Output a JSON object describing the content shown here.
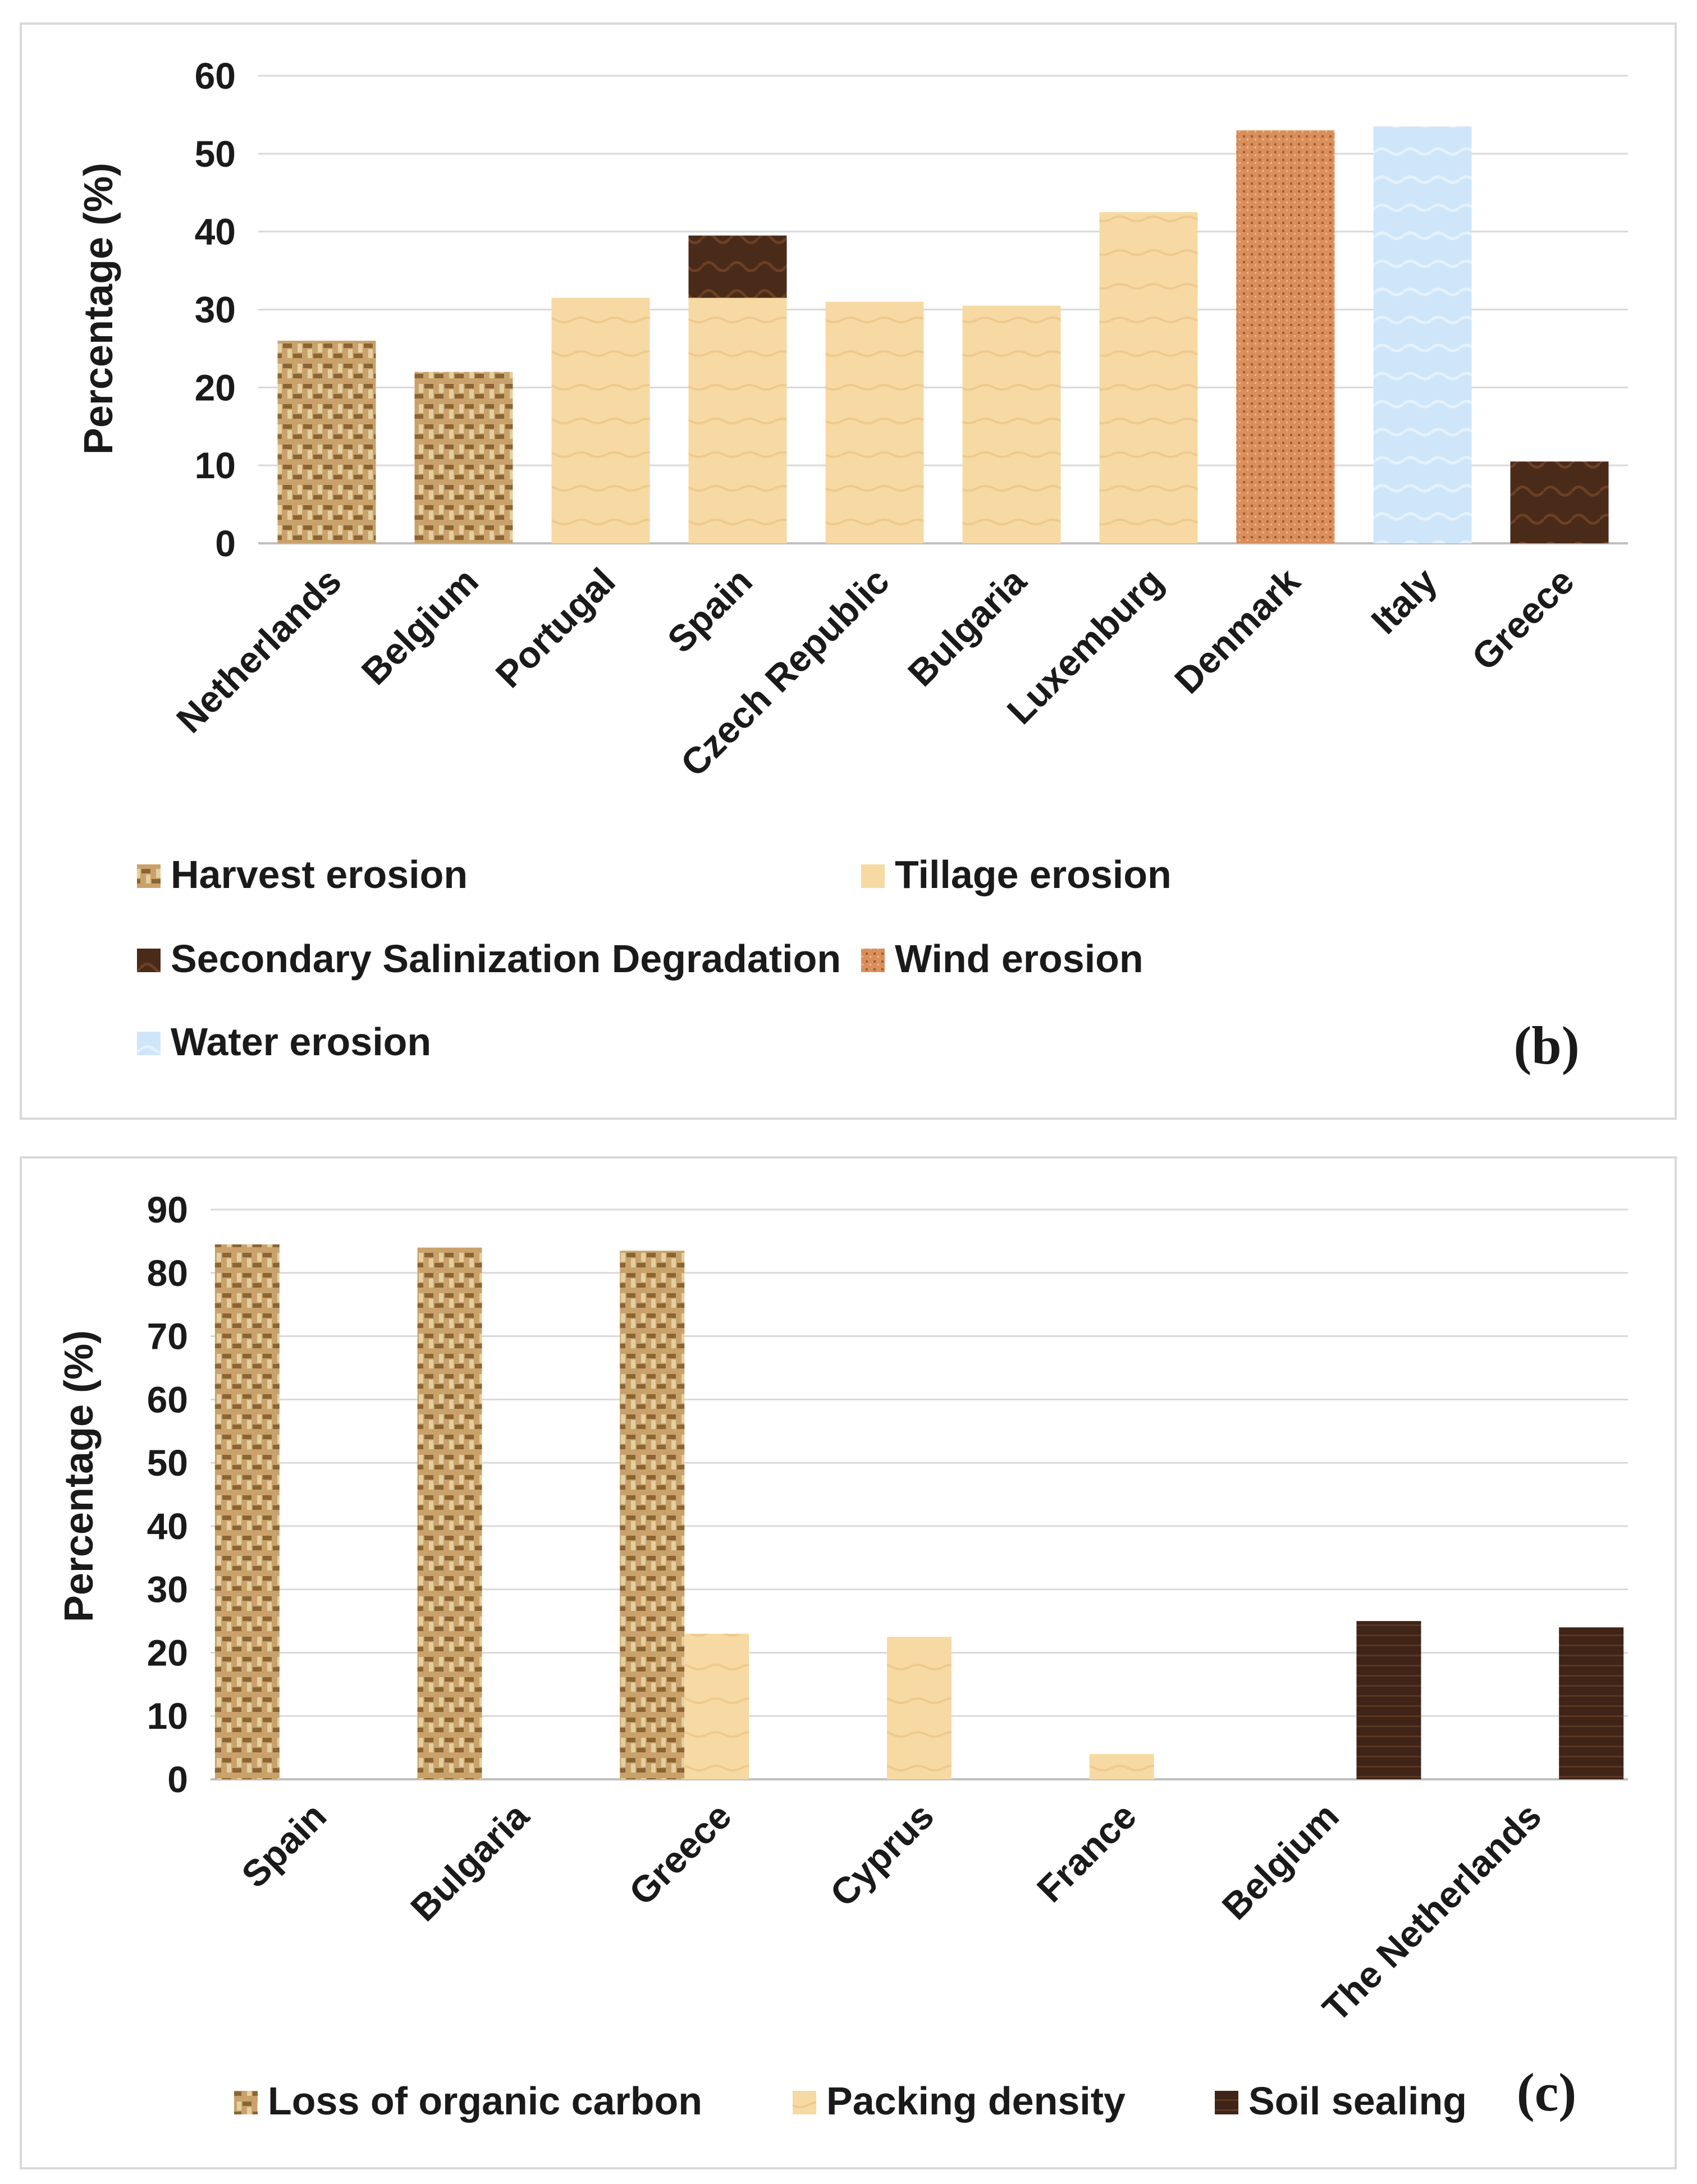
{
  "colors": {
    "harvest": "#b8925a",
    "tillage": "#f7d9a3",
    "salinization": "#4a2a18",
    "wind": "#d98f5c",
    "water": "#cfe6fa",
    "organic": "#b8925a",
    "packing": "#f7d9a3",
    "sealing": "#3f2417",
    "grid": "#d9d9d9",
    "axis": "#bfbfbf"
  },
  "chart_data": [
    {
      "type": "bar",
      "stacked": true,
      "panel_label": "(b)",
      "title": "",
      "xlabel": "",
      "ylabel": "Percentage (%)",
      "ylim": [
        0,
        60
      ],
      "yticks": [
        "0",
        "10",
        "20",
        "30",
        "40",
        "50",
        "60"
      ],
      "grid": true,
      "legend": "bottom",
      "categories": [
        "Netherlands",
        "Belgium",
        "Portugal",
        "Spain",
        "Czech Republic",
        "Bulgaria",
        "Luxemburg",
        "Denmark",
        "Italy",
        "Greece"
      ],
      "series": [
        {
          "name": "Harvest erosion",
          "color_key": "harvest",
          "values": [
            26,
            22,
            0,
            0,
            0,
            0,
            0,
            0,
            0,
            0
          ]
        },
        {
          "name": "Tillage erosion",
          "color_key": "tillage",
          "values": [
            0,
            0,
            31.5,
            31.5,
            31,
            30.5,
            42.5,
            0,
            0,
            0
          ]
        },
        {
          "name": "Secondary Salinization Degradation",
          "color_key": "salinization",
          "values": [
            0,
            0,
            0,
            8,
            0,
            0,
            0,
            0,
            0,
            10.5
          ]
        },
        {
          "name": "Wind erosion",
          "color_key": "wind",
          "values": [
            0,
            0,
            0,
            0,
            0,
            0,
            0,
            53,
            0,
            0
          ]
        },
        {
          "name": "Water erosion",
          "color_key": "water",
          "values": [
            0,
            0,
            0,
            0,
            0,
            0,
            0,
            0,
            53.5,
            0
          ]
        }
      ]
    },
    {
      "type": "bar",
      "stacked": false,
      "panel_label": "(c)",
      "title": "",
      "xlabel": "",
      "ylabel": "Percentage (%)",
      "ylim": [
        0,
        90
      ],
      "yticks": [
        "0",
        "10",
        "20",
        "30",
        "40",
        "50",
        "60",
        "70",
        "80",
        "90"
      ],
      "grid": true,
      "legend": "bottom",
      "categories": [
        "Spain",
        "Bulgaria",
        "Greece",
        "Cyprus",
        "France",
        "Belgium",
        "The Netherlands"
      ],
      "series": [
        {
          "name": "Loss of organic carbon",
          "color_key": "organic",
          "values": [
            84.5,
            84,
            83.5,
            0,
            0,
            0,
            0
          ]
        },
        {
          "name": "Packing density",
          "color_key": "packing",
          "values": [
            0,
            0,
            23,
            22.5,
            4,
            0,
            0
          ]
        },
        {
          "name": "Soil sealing",
          "color_key": "sealing",
          "values": [
            0,
            0,
            0,
            0,
            0,
            25,
            24
          ]
        }
      ]
    }
  ]
}
